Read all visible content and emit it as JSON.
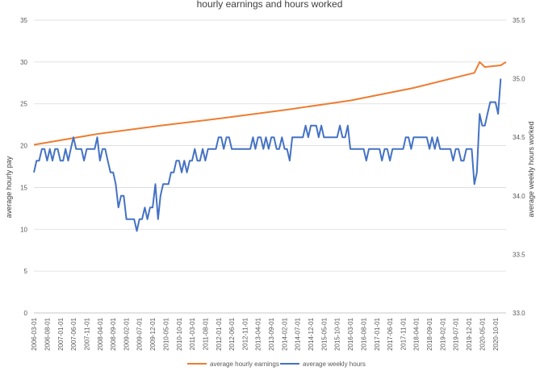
{
  "chart_data": {
    "type": "line",
    "title": "hourly earnings and hours worked",
    "ylabel_left": "average hourly pay",
    "ylabel_right": "average weekly hours worked",
    "ylim_left": [
      0,
      35
    ],
    "ylim_right": [
      33.0,
      35.5
    ],
    "yticks_left": [
      "0",
      "5",
      "10",
      "15",
      "20",
      "25",
      "30",
      "35"
    ],
    "yticks_right": [
      "33.0",
      "33.5",
      "34.0",
      "34.5",
      "35.0",
      "35.5"
    ],
    "grid": "horizontal",
    "legend_position": "bottom",
    "x_tick_labels": [
      "2006-03-01",
      "2006-08-01",
      "2007-01-01",
      "2007-06-01",
      "2007-11-01",
      "2008-04-01",
      "2008-09-01",
      "2009-02-01",
      "2009-07-01",
      "2009-12-01",
      "2010-05-01",
      "2010-10-01",
      "2011-03-01",
      "2011-08-01",
      "2012-01-01",
      "2012-06-01",
      "2012-11-01",
      "2013-04-01",
      "2013-09-01",
      "2014-02-01",
      "2014-07-01",
      "2014-12-01",
      "2015-05-01",
      "2015-10-01",
      "2016-03-01",
      "2016-08-01",
      "2017-01-01",
      "2017-06-01",
      "2017-11-01",
      "2018-04-01",
      "2018-09-01",
      "2019-02-01",
      "2019-07-01",
      "2019-12-01",
      "2020-05-01",
      "2020-10-01"
    ],
    "series": [
      {
        "name": "average hourly earnings",
        "axis": "left",
        "color": "#ED7D31",
        "keypoints": [
          {
            "x": "2006-03-01",
            "y": 20.1
          },
          {
            "x": "2008-03-01",
            "y": 21.4
          },
          {
            "x": "2010-03-01",
            "y": 22.4
          },
          {
            "x": "2012-03-01",
            "y": 23.3
          },
          {
            "x": "2014-03-01",
            "y": 24.3
          },
          {
            "x": "2016-03-01",
            "y": 25.4
          },
          {
            "x": "2018-03-01",
            "y": 26.9
          },
          {
            "x": "2020-02-01",
            "y": 28.7
          },
          {
            "x": "2020-04-01",
            "y": 30.0
          },
          {
            "x": "2020-06-01",
            "y": 29.4
          },
          {
            "x": "2020-09-01",
            "y": 29.5
          },
          {
            "x": "2020-12-01",
            "y": 29.6
          },
          {
            "x": "2021-02-01",
            "y": 30.0
          }
        ]
      },
      {
        "name": "average weekly hours",
        "axis": "right",
        "color": "#4472C4",
        "values": [
          34.2,
          34.3,
          34.3,
          34.4,
          34.4,
          34.3,
          34.4,
          34.3,
          34.4,
          34.4,
          34.3,
          34.3,
          34.4,
          34.3,
          34.4,
          34.5,
          34.4,
          34.4,
          34.4,
          34.3,
          34.4,
          34.4,
          34.4,
          34.4,
          34.5,
          34.3,
          34.4,
          34.4,
          34.3,
          34.2,
          34.2,
          34.1,
          33.9,
          34.0,
          34.0,
          33.8,
          33.8,
          33.8,
          33.8,
          33.7,
          33.8,
          33.8,
          33.9,
          33.8,
          33.9,
          33.9,
          34.1,
          33.8,
          34.0,
          34.1,
          34.1,
          34.1,
          34.2,
          34.2,
          34.3,
          34.3,
          34.2,
          34.3,
          34.2,
          34.3,
          34.3,
          34.4,
          34.3,
          34.3,
          34.4,
          34.3,
          34.4,
          34.4,
          34.4,
          34.4,
          34.5,
          34.5,
          34.4,
          34.5,
          34.5,
          34.4,
          34.4,
          34.4,
          34.4,
          34.4,
          34.4,
          34.4,
          34.4,
          34.5,
          34.4,
          34.5,
          34.5,
          34.4,
          34.5,
          34.4,
          34.5,
          34.5,
          34.4,
          34.4,
          34.5,
          34.4,
          34.4,
          34.3,
          34.5,
          34.5,
          34.5,
          34.5,
          34.5,
          34.6,
          34.5,
          34.6,
          34.6,
          34.6,
          34.5,
          34.6,
          34.5,
          34.5,
          34.5,
          34.5,
          34.5,
          34.5,
          34.6,
          34.5,
          34.5,
          34.6,
          34.4,
          34.4,
          34.4,
          34.4,
          34.4,
          34.4,
          34.3,
          34.4,
          34.4,
          34.4,
          34.4,
          34.4,
          34.3,
          34.4,
          34.4,
          34.3,
          34.4,
          34.4,
          34.4,
          34.4,
          34.4,
          34.5,
          34.5,
          34.4,
          34.5,
          34.5,
          34.5,
          34.5,
          34.5,
          34.5,
          34.4,
          34.5,
          34.4,
          34.5,
          34.4,
          34.4,
          34.4,
          34.4,
          34.4,
          34.3,
          34.4,
          34.4,
          34.3,
          34.3,
          34.4,
          34.4,
          34.4,
          34.1,
          34.2,
          34.7,
          34.6,
          34.6,
          34.7,
          34.8,
          34.8,
          34.8,
          34.7,
          35.0
        ]
      }
    ]
  }
}
